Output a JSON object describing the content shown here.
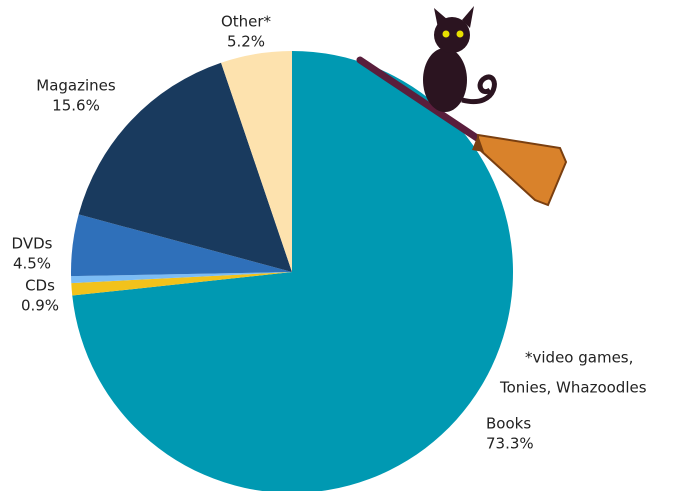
{
  "chart_data": {
    "type": "pie",
    "categories": [
      "Books",
      "CDs",
      null,
      "DVDs",
      "Magazines",
      "Other*"
    ],
    "values": [
      73.3,
      0.9,
      0.5,
      4.5,
      15.6,
      5.2
    ],
    "value_labels": [
      "73.3%",
      "0.9%",
      null,
      "4.5%",
      "15.6%",
      "5.2%"
    ],
    "colors": [
      "#0099b2",
      "#f2c21b",
      "#7cbcf4",
      "#2f70ba",
      "#193a5e",
      "#fde2ae"
    ],
    "note": [
      "*video games,",
      "Tonies, Whazoodles"
    ]
  }
}
